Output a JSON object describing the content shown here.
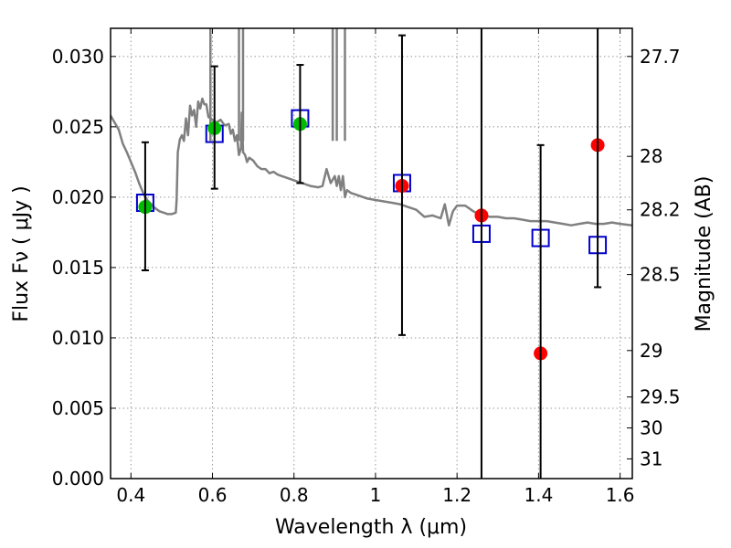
{
  "chart_data": {
    "type": "scatter",
    "xlabel": "Wavelength  λ (μm)",
    "ylabel": "Flux  Fν  ( μJy )",
    "y2label": "Magnitude (AB)",
    "xlim": [
      0.35,
      1.63
    ],
    "ylim": [
      0.0,
      0.032
    ],
    "grid": true,
    "x_ticks": [
      0.4,
      0.6,
      0.8,
      1.0,
      1.2,
      1.4,
      1.6
    ],
    "x_tick_labels": [
      "0.4",
      "0.6",
      "0.8",
      "1",
      "1.2",
      "1.4",
      "1.6"
    ],
    "y_ticks": [
      0.0,
      0.005,
      0.01,
      0.015,
      0.02,
      0.025,
      0.03
    ],
    "y_tick_labels": [
      "0.000",
      "0.005",
      "0.010",
      "0.015",
      "0.020",
      "0.025",
      "0.030"
    ],
    "y2_ticks": [
      {
        "label": "27.7",
        "flux": 0.03
      },
      {
        "label": "28",
        "flux": 0.0229
      },
      {
        "label": "28.2",
        "flux": 0.0191
      },
      {
        "label": "28.5",
        "flux": 0.0145
      },
      {
        "label": "29",
        "flux": 0.0091
      },
      {
        "label": "29.5",
        "flux": 0.0058
      },
      {
        "label": "30",
        "flux": 0.0036
      },
      {
        "label": "31",
        "flux": 0.0014
      }
    ],
    "series": [
      {
        "kind": "line",
        "color": "#808080",
        "x": [
          0.35,
          0.37,
          0.38,
          0.39,
          0.4,
          0.41,
          0.42,
          0.43,
          0.44,
          0.45,
          0.46,
          0.47,
          0.48,
          0.49,
          0.5,
          0.51,
          0.512,
          0.515,
          0.52,
          0.525,
          0.53,
          0.535,
          0.54,
          0.545,
          0.55,
          0.555,
          0.56,
          0.565,
          0.57,
          0.575,
          0.58,
          0.585,
          0.59,
          0.6,
          0.61,
          0.62,
          0.63,
          0.64,
          0.645,
          0.65,
          0.655,
          0.66,
          0.665,
          0.67,
          0.672,
          0.675,
          0.68,
          0.685,
          0.69,
          0.7,
          0.71,
          0.72,
          0.73,
          0.74,
          0.75,
          0.76,
          0.77,
          0.78,
          0.8,
          0.82,
          0.84,
          0.86,
          0.87,
          0.88,
          0.89,
          0.9,
          0.905,
          0.91,
          0.915,
          0.92,
          0.925,
          0.93,
          0.94,
          0.96,
          0.98,
          1.0,
          1.02,
          1.04,
          1.06,
          1.08,
          1.1,
          1.12,
          1.14,
          1.16,
          1.17,
          1.18,
          1.19,
          1.2,
          1.22,
          1.24,
          1.26,
          1.28,
          1.3,
          1.32,
          1.34,
          1.36,
          1.38,
          1.4,
          1.42,
          1.44,
          1.46,
          1.48,
          1.5,
          1.52,
          1.54,
          1.56,
          1.58,
          1.6,
          1.63
        ],
        "y": [
          0.0258,
          0.0248,
          0.0238,
          0.0232,
          0.0225,
          0.0218,
          0.021,
          0.0203,
          0.0198,
          0.0195,
          0.0192,
          0.019,
          0.0189,
          0.0188,
          0.0188,
          0.0189,
          0.0198,
          0.0232,
          0.0241,
          0.0244,
          0.024,
          0.0256,
          0.0244,
          0.0265,
          0.0258,
          0.0262,
          0.025,
          0.0268,
          0.0263,
          0.027,
          0.0266,
          0.0266,
          0.0257,
          0.0255,
          0.0253,
          0.0255,
          0.0251,
          0.0252,
          0.0245,
          0.0248,
          0.024,
          0.0244,
          0.023,
          0.0235,
          0.026,
          0.0232,
          0.023,
          0.0225,
          0.0228,
          0.0226,
          0.0222,
          0.022,
          0.022,
          0.0217,
          0.0218,
          0.0216,
          0.0215,
          0.0214,
          0.0212,
          0.021,
          0.0208,
          0.0207,
          0.0208,
          0.022,
          0.021,
          0.0215,
          0.0208,
          0.0215,
          0.0205,
          0.0215,
          0.02,
          0.0205,
          0.0203,
          0.0201,
          0.0199,
          0.0198,
          0.0197,
          0.0196,
          0.0195,
          0.0193,
          0.0191,
          0.0186,
          0.0187,
          0.0185,
          0.0195,
          0.018,
          0.019,
          0.0194,
          0.0194,
          0.019,
          0.0187,
          0.0186,
          0.0186,
          0.0185,
          0.0185,
          0.0184,
          0.0183,
          0.0183,
          0.0183,
          0.0182,
          0.0181,
          0.018,
          0.0181,
          0.0182,
          0.0181,
          0.0181,
          0.0182,
          0.0181,
          0.018
        ],
        "spikes": [
          {
            "x": 0.595,
            "y": 0.032
          },
          {
            "x": 0.665,
            "y": 0.032
          },
          {
            "x": 0.675,
            "y": 0.032
          },
          {
            "x": 0.895,
            "y": 0.032
          },
          {
            "x": 0.905,
            "y": 0.032
          },
          {
            "x": 0.925,
            "y": 0.032
          }
        ]
      },
      {
        "kind": "open-square",
        "color": "#0000cc",
        "x": [
          0.435,
          0.605,
          0.815,
          1.065,
          1.26,
          1.405,
          1.545
        ],
        "y": [
          0.0196,
          0.0245,
          0.0256,
          0.021,
          0.0174,
          0.0171,
          0.0166
        ]
      },
      {
        "kind": "dot",
        "color": "#00bb00",
        "x": [
          0.435,
          0.605,
          0.815
        ],
        "y": [
          0.0193,
          0.0249,
          0.0252
        ]
      },
      {
        "kind": "dot",
        "color": "#ff0000",
        "x": [
          1.065,
          1.26,
          1.405,
          1.545
        ],
        "y": [
          0.0208,
          0.0187,
          0.0089,
          0.0237
        ]
      },
      {
        "kind": "errorbar",
        "color": "#000000",
        "points": [
          {
            "x": 0.435,
            "low": 0.0148,
            "high": 0.0239
          },
          {
            "x": 0.605,
            "low": 0.0206,
            "high": 0.0293
          },
          {
            "x": 0.815,
            "low": 0.021,
            "high": 0.0294
          },
          {
            "x": 1.065,
            "low": 0.0102,
            "high": 0.0315
          },
          {
            "x": 1.26,
            "low": 0.0,
            "high": 0.032
          },
          {
            "x": 1.405,
            "low": 0.0,
            "high": 0.0237
          },
          {
            "x": 1.545,
            "low": 0.0136,
            "high": 0.032
          }
        ]
      }
    ]
  }
}
